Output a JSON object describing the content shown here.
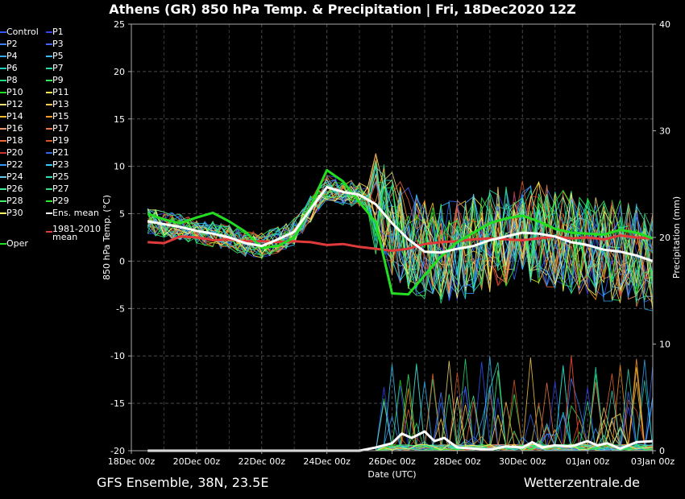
{
  "title": "Athens  (GR)  850 hPa Temp. & Precipitation | Fri, 18Dec2020 12Z",
  "footer_left": "GFS Ensemble, 38N, 23.5E",
  "footer_right": "Wetterzentrale.de",
  "colors": {
    "background": "#000000",
    "grid": "#555555",
    "ens_mean": "#ffffff",
    "climate_mean": "#e03a3a",
    "oper": "#22dd22",
    "control": "#3355ff"
  },
  "legend": [
    {
      "label": "Control",
      "color": "#3355ff"
    },
    {
      "label": "P1",
      "color": "#3344ee"
    },
    {
      "label": "P2",
      "color": "#3d7fff"
    },
    {
      "label": "P3",
      "color": "#4466ff"
    },
    {
      "label": "P4",
      "color": "#33aaee"
    },
    {
      "label": "P5",
      "color": "#33bbff"
    },
    {
      "label": "P6",
      "color": "#22ccbb"
    },
    {
      "label": "P7",
      "color": "#22ddaa"
    },
    {
      "label": "P8",
      "color": "#22dd77"
    },
    {
      "label": "P9",
      "color": "#33ee55"
    },
    {
      "label": "P10",
      "color": "#22dd22"
    },
    {
      "label": "P11",
      "color": "#ffee44"
    },
    {
      "label": "P12",
      "color": "#eedd77"
    },
    {
      "label": "P13",
      "color": "#ffcc44"
    },
    {
      "label": "P14",
      "color": "#ffbb33"
    },
    {
      "label": "P15",
      "color": "#ff9922"
    },
    {
      "label": "P16",
      "color": "#f09966"
    },
    {
      "label": "P17",
      "color": "#ee7744"
    },
    {
      "label": "P18",
      "color": "#ee6633"
    },
    {
      "label": "P19",
      "color": "#dd5522"
    },
    {
      "label": "P20",
      "color": "#cc3333"
    },
    {
      "label": "P21",
      "color": "#3366ee"
    },
    {
      "label": "P22",
      "color": "#3399ff"
    },
    {
      "label": "P23",
      "color": "#33ccff"
    },
    {
      "label": "P24",
      "color": "#66ccee"
    },
    {
      "label": "P25",
      "color": "#33ddbb"
    },
    {
      "label": "P26",
      "color": "#44ee99"
    },
    {
      "label": "P27",
      "color": "#33dd88"
    },
    {
      "label": "P28",
      "color": "#44ee66"
    },
    {
      "label": "P29",
      "color": "#22ee22"
    },
    {
      "label": "P30",
      "color": "#ffff66"
    },
    {
      "label": "Ens. mean",
      "color": "#ffffff"
    },
    {
      "label": "1981-2010\nmean",
      "color": "#e03a3a"
    },
    {
      "label": "Oper",
      "color": "#22dd22"
    }
  ],
  "chart_data": {
    "type": "line",
    "title": "Athens  (GR)  850 hPa Temp. & Precipitation | Fri, 18Dec2020 12Z",
    "xlabel": "Date (UTC)",
    "ylabel": "850 hPa Temp. (°C)",
    "y2label": "Precipitation (mm)",
    "x_tick_labels": [
      "18Dec 00z",
      "20Dec 00z",
      "22Dec 00z",
      "24Dec 00z",
      "26Dec 00z",
      "28Dec 00z",
      "30Dec 00z",
      "01Jan 00z",
      "03Jan 00z"
    ],
    "x_tick_days": [
      0,
      2,
      4,
      6,
      8,
      10,
      12,
      14,
      16
    ],
    "xlim_days": [
      0,
      16
    ],
    "y_ticks": [
      25,
      20,
      15,
      10,
      5,
      0,
      -5,
      -10,
      -15,
      -20
    ],
    "ylim": [
      -20,
      25
    ],
    "y2_ticks": [
      40,
      30,
      20,
      10,
      0
    ],
    "y2lim": [
      0,
      40
    ],
    "grid": true,
    "legend_position": "left",
    "ens_mean_temp": {
      "x_days": [
        0.5,
        1,
        1.5,
        2,
        2.5,
        3,
        3.5,
        4,
        4.5,
        5,
        5.5,
        6,
        6.5,
        7,
        7.5,
        8,
        8.5,
        9,
        9.5,
        10,
        10.5,
        11,
        11.5,
        12,
        12.5,
        13,
        13.5,
        14,
        14.5,
        15,
        15.5,
        16
      ],
      "values": [
        4.2,
        3.9,
        3.6,
        3.2,
        2.9,
        2.5,
        1.9,
        1.6,
        2.3,
        3.1,
        5.5,
        7.8,
        7.3,
        7.0,
        6.0,
        4.0,
        2.3,
        1.0,
        0.9,
        1.3,
        1.6,
        2.2,
        2.6,
        3.0,
        2.9,
        2.6,
        2.0,
        1.7,
        1.2,
        1.0,
        0.6,
        0.0
      ]
    },
    "climate_mean_temp": {
      "x_days": [
        0.5,
        1,
        1.5,
        2,
        2.5,
        3,
        3.5,
        4,
        4.5,
        5,
        5.5,
        6,
        6.5,
        7,
        7.5,
        8,
        8.5,
        9,
        9.5,
        10,
        10.5,
        11,
        11.5,
        12,
        12.5,
        13,
        13.5,
        14,
        14.5,
        15,
        15.5,
        16
      ],
      "values": [
        2.0,
        1.9,
        2.6,
        2.5,
        2.2,
        2.3,
        2.1,
        2.1,
        2.0,
        2.1,
        2.0,
        1.7,
        1.8,
        1.5,
        1.3,
        1.1,
        1.3,
        1.8,
        2.0,
        2.1,
        2.3,
        2.4,
        2.3,
        2.2,
        2.4,
        2.6,
        2.4,
        2.5,
        2.3,
        2.7,
        2.5,
        2.4
      ]
    },
    "oper_temp": {
      "x_days": [
        0.5,
        1,
        1.5,
        2,
        2.5,
        3,
        3.5,
        4,
        4.5,
        5,
        5.5,
        6,
        6.5,
        7,
        7.5,
        8,
        8.5,
        9,
        9.5,
        10,
        10.5,
        11,
        11.5,
        12,
        12.5,
        13,
        13.5,
        14,
        14.5,
        15,
        15.5,
        16
      ],
      "values": [
        5.0,
        4.4,
        4.0,
        4.6,
        5.1,
        4.2,
        3.1,
        1.4,
        1.6,
        2.5,
        5.8,
        9.6,
        8.4,
        6.2,
        4.1,
        -3.4,
        -3.5,
        -1.5,
        0.5,
        2.0,
        3.0,
        4.0,
        4.5,
        4.8,
        4.2,
        3.4,
        3.0,
        2.9,
        2.8,
        3.3,
        3.0,
        2.4
      ]
    },
    "ens_mean_precip_mm": {
      "x_days": [
        0.5,
        1,
        2,
        3,
        4,
        5,
        6,
        7,
        7.5,
        8,
        8.3,
        8.6,
        9,
        9.3,
        9.6,
        10,
        10.5,
        11,
        11.5,
        12,
        12.3,
        12.6,
        13,
        13.5,
        14,
        14.3,
        14.6,
        15,
        15.5,
        16
      ],
      "values": [
        0,
        0,
        0,
        0,
        0,
        0,
        0,
        0,
        0.3,
        0.7,
        1.6,
        1.2,
        1.8,
        0.9,
        1.2,
        0.3,
        0.2,
        0.1,
        0.4,
        0.3,
        0.8,
        0.3,
        0.5,
        0.4,
        0.9,
        0.5,
        0.7,
        0.2,
        0.8,
        0.9
      ]
    }
  }
}
